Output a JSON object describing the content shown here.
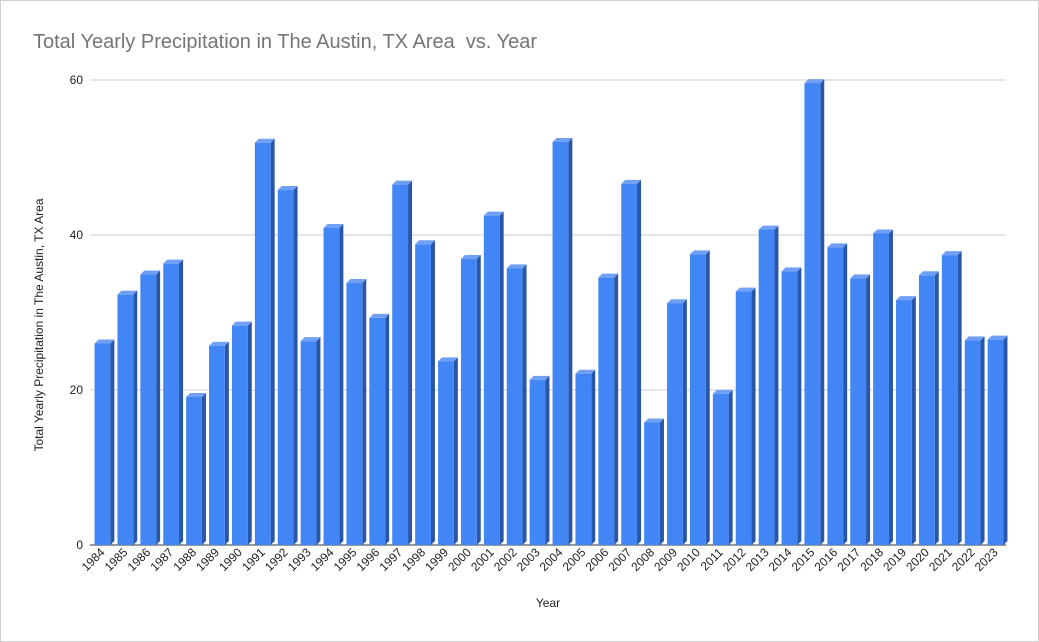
{
  "chart_data": {
    "type": "bar",
    "title": "Total Yearly Precipitation in The Austin, TX Area  vs. Year",
    "xlabel": "Year",
    "ylabel": "Total Yearly Precipitation in The Austin, TX Area",
    "ylim": [
      0,
      60
    ],
    "yticks": [
      "0",
      "20",
      "40",
      "60"
    ],
    "grid": true,
    "legend": "none",
    "bar_color": "#4285f4",
    "bar_side_color": "#2a56a8",
    "bar_top_color": "#6fa0f6",
    "categories": [
      "1984",
      "1985",
      "1986",
      "1987",
      "1988",
      "1989",
      "1990",
      "1991",
      "1992",
      "1993",
      "1994",
      "1995",
      "1996",
      "1997",
      "1998",
      "1999",
      "2000",
      "2001",
      "2002",
      "2003",
      "2004",
      "2005",
      "2006",
      "2007",
      "2008",
      "2009",
      "2010",
      "2011",
      "2012",
      "2013",
      "2014",
      "2015",
      "2016",
      "2017",
      "2018",
      "2019",
      "2020",
      "2021",
      "2022",
      "2023"
    ],
    "values": [
      26.0,
      32.3,
      34.9,
      36.3,
      19.1,
      25.7,
      28.3,
      51.9,
      45.8,
      26.3,
      40.9,
      33.8,
      29.3,
      46.5,
      38.8,
      23.7,
      36.9,
      42.5,
      35.7,
      21.3,
      52.0,
      22.1,
      34.5,
      46.6,
      15.8,
      31.2,
      37.5,
      19.5,
      32.7,
      40.7,
      35.3,
      59.6,
      38.4,
      34.4,
      40.2,
      31.6,
      34.8,
      37.4,
      26.4,
      26.5
    ]
  }
}
